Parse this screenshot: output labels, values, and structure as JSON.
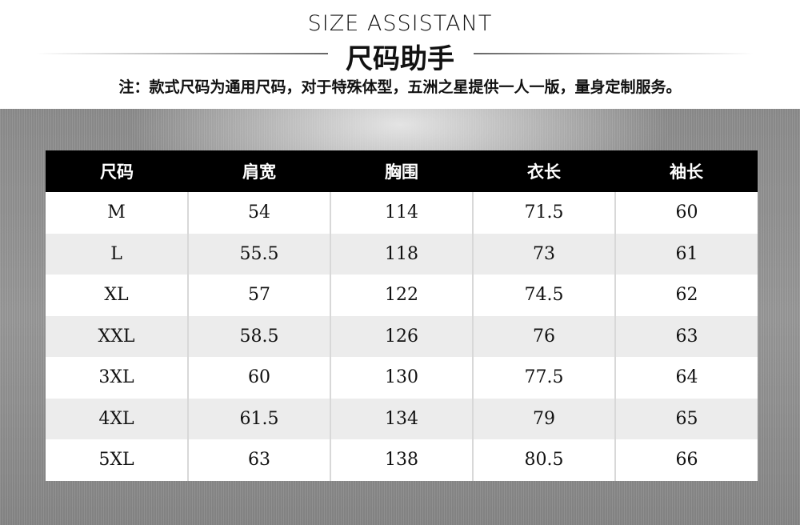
{
  "header": {
    "title_en": "SIZE ASSISTANT",
    "title_cn": "尺码助手",
    "note": "注：款式尺码为通用尺码，对于特殊体型，五洲之星提供一人一版，量身定制服务。"
  },
  "table": {
    "columns": [
      "尺码",
      "肩宽",
      "胸围",
      "衣长",
      "袖长"
    ],
    "rows": [
      [
        "M",
        "54",
        "114",
        "71.5",
        "60"
      ],
      [
        "L",
        "55.5",
        "118",
        "73",
        "61"
      ],
      [
        "XL",
        "57",
        "122",
        "74.5",
        "62"
      ],
      [
        "XXL",
        "58.5",
        "126",
        "76",
        "63"
      ],
      [
        "3XL",
        "60",
        "130",
        "77.5",
        "64"
      ],
      [
        "4XL",
        "61.5",
        "134",
        "79",
        "65"
      ],
      [
        "5XL",
        "63",
        "138",
        "80.5",
        "66"
      ]
    ]
  }
}
